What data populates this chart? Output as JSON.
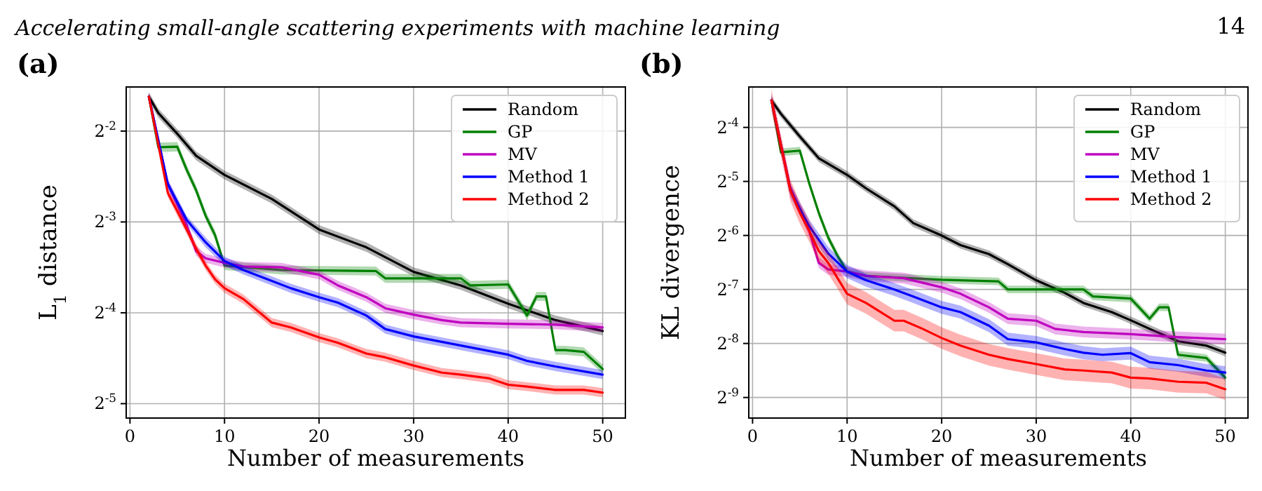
{
  "chart_data": [
    {
      "type": "line",
      "title": "(a)",
      "xlabel": "Number of measurements",
      "ylabel": "L$_{1}$ distance",
      "log": "y",
      "grid": true,
      "legend": "top right",
      "line_style": "solid",
      "marker": "none",
      "annotations": [
        "Accelerating small-angle scattering experiments with machine learning",
        "14"
      ],
      "xlim": [
        -0.4,
        52.4
      ],
      "xticks": [
        0,
        10,
        20,
        30,
        40,
        50
      ],
      "ylim": [
        0.028,
        0.35
      ],
      "yticks": [
        {
          "value": 0.25,
          "label": "2$^{-2}$"
        },
        {
          "value": 0.125,
          "label": "2$^{-3}$"
        },
        {
          "value": 0.0625,
          "label": "2$^{-4}$"
        },
        {
          "value": 0.03125,
          "label": "2$^{-5}$"
        }
      ],
      "series": [
        {
          "name": "Random",
          "color": "#000000",
          "x": [
            2,
            3,
            5,
            7,
            10,
            15,
            20,
            25,
            30,
            35,
            40,
            45,
            50
          ],
          "values": [
            0.325,
            0.287,
            0.245,
            0.207,
            0.179,
            0.149,
            0.118,
            0.103,
            0.0854,
            0.077,
            0.067,
            0.0591,
            0.0544
          ],
          "lower": [
            0.314,
            0.277,
            0.237,
            0.2,
            0.173,
            0.144,
            0.114,
            0.0995,
            0.0825,
            0.0744,
            0.0647,
            0.0571,
            0.0526
          ],
          "upper": [
            0.336,
            0.297,
            0.254,
            0.214,
            0.185,
            0.154,
            0.122,
            0.107,
            0.0884,
            0.0797,
            0.0693,
            0.0612,
            0.0563
          ]
        },
        {
          "name": "GP",
          "color": "#008000",
          "x": [
            2,
            3,
            5,
            6,
            7,
            8,
            9,
            10,
            16,
            26,
            27,
            35,
            36,
            40,
            42,
            43,
            44,
            45,
            46,
            48,
            50
          ],
          "values": [
            0.325,
            0.221,
            0.222,
            0.186,
            0.159,
            0.131,
            0.113,
            0.0896,
            0.0866,
            0.086,
            0.0813,
            0.0813,
            0.077,
            0.0776,
            0.0612,
            0.0708,
            0.0708,
            0.047,
            0.047,
            0.0464,
            0.0407
          ],
          "lower": [
            0.314,
            0.213,
            0.214,
            0.18,
            0.154,
            0.127,
            0.109,
            0.0866,
            0.0837,
            0.0831,
            0.0785,
            0.0785,
            0.0744,
            0.075,
            0.0591,
            0.0684,
            0.0684,
            0.0454,
            0.0454,
            0.0448,
            0.0393
          ],
          "upper": [
            0.336,
            0.229,
            0.23,
            0.193,
            0.165,
            0.136,
            0.117,
            0.0927,
            0.0896,
            0.089,
            0.0841,
            0.0841,
            0.0797,
            0.0803,
            0.0633,
            0.0733,
            0.0733,
            0.0486,
            0.0486,
            0.048,
            0.0421
          ]
        },
        {
          "name": "MV",
          "color": "#bf00bf",
          "x": [
            2,
            4,
            6,
            7,
            8,
            10,
            12,
            16,
            20,
            22,
            25,
            27,
            30,
            33,
            35,
            40,
            45,
            50
          ],
          "values": [
            0.325,
            0.167,
            0.122,
            0.1,
            0.0947,
            0.0915,
            0.089,
            0.0884,
            0.0836,
            0.077,
            0.0704,
            0.0647,
            0.0616,
            0.0591,
            0.058,
            0.0575,
            0.0571,
            0.0559
          ],
          "lower": [
            0.314,
            0.161,
            0.118,
            0.0966,
            0.0915,
            0.0884,
            0.086,
            0.0854,
            0.0808,
            0.0744,
            0.068,
            0.0625,
            0.0595,
            0.0571,
            0.056,
            0.0555,
            0.0552,
            0.054
          ],
          "upper": [
            0.336,
            0.173,
            0.126,
            0.104,
            0.098,
            0.0947,
            0.0921,
            0.0915,
            0.0865,
            0.0797,
            0.0729,
            0.067,
            0.0638,
            0.0612,
            0.06,
            0.0595,
            0.0591,
            0.0579
          ]
        },
        {
          "name": "Method 1",
          "color": "#0000ff",
          "x": [
            2,
            4,
            6,
            8,
            10,
            12,
            15,
            17,
            20,
            22,
            25,
            27,
            30,
            35,
            40,
            42,
            45,
            50
          ],
          "values": [
            0.325,
            0.167,
            0.127,
            0.107,
            0.0928,
            0.0866,
            0.0797,
            0.0754,
            0.0704,
            0.0675,
            0.0612,
            0.0552,
            0.0522,
            0.0487,
            0.0454,
            0.0433,
            0.0415,
            0.039
          ],
          "lower": [
            0.314,
            0.161,
            0.123,
            0.103,
            0.0896,
            0.0837,
            0.077,
            0.0728,
            0.068,
            0.0652,
            0.0591,
            0.0533,
            0.0504,
            0.047,
            0.0439,
            0.0418,
            0.0401,
            0.0377
          ],
          "upper": [
            0.336,
            0.173,
            0.131,
            0.111,
            0.096,
            0.0896,
            0.0825,
            0.078,
            0.0729,
            0.0699,
            0.0633,
            0.0571,
            0.054,
            0.0504,
            0.047,
            0.0448,
            0.043,
            0.0404
          ]
        },
        {
          "name": "Method 2",
          "color": "#ff0000",
          "x": [
            2,
            4,
            5,
            6,
            7,
            8,
            9,
            10,
            12,
            15,
            17,
            20,
            22,
            25,
            27,
            30,
            33,
            35,
            38,
            40,
            42,
            45,
            48,
            50
          ],
          "values": [
            0.325,
            0.156,
            0.136,
            0.118,
            0.102,
            0.0896,
            0.0807,
            0.0754,
            0.0694,
            0.058,
            0.0559,
            0.0518,
            0.0497,
            0.0458,
            0.0445,
            0.0418,
            0.0396,
            0.039,
            0.0379,
            0.0361,
            0.0356,
            0.0347,
            0.0347,
            0.034
          ],
          "lower": [
            0.314,
            0.151,
            0.131,
            0.114,
            0.0985,
            0.0866,
            0.078,
            0.0728,
            0.067,
            0.056,
            0.054,
            0.05,
            0.048,
            0.0442,
            0.043,
            0.0404,
            0.0383,
            0.0377,
            0.0366,
            0.0349,
            0.0344,
            0.0335,
            0.0335,
            0.0328
          ],
          "upper": [
            0.336,
            0.161,
            0.141,
            0.122,
            0.106,
            0.0927,
            0.0835,
            0.078,
            0.0718,
            0.06,
            0.0579,
            0.0536,
            0.0514,
            0.0474,
            0.0461,
            0.0433,
            0.041,
            0.0404,
            0.0392,
            0.0374,
            0.0368,
            0.0359,
            0.0359,
            0.0352
          ]
        }
      ]
    },
    {
      "type": "line",
      "title": "(b)",
      "xlabel": "Number of measurements",
      "ylabel": "KL divergence",
      "log": "y",
      "grid": true,
      "legend": "top right",
      "line_style": "solid",
      "marker": "none",
      "xlim": [
        -0.4,
        52.4
      ],
      "xticks": [
        0,
        10,
        20,
        30,
        40,
        50
      ],
      "ylim": [
        0.0015,
        0.105
      ],
      "yticks": [
        {
          "value": 0.0625,
          "label": "2$^{-4}$"
        },
        {
          "value": 0.03125,
          "label": "2$^{-5}$"
        },
        {
          "value": 0.015625,
          "label": "2$^{-6}$"
        },
        {
          "value": 0.0078125,
          "label": "2$^{-7}$"
        },
        {
          "value": 0.00390625,
          "label": "2$^{-8}$"
        },
        {
          "value": 0.001953125,
          "label": "2$^{-9}$"
        }
      ],
      "series": [
        {
          "name": "Random",
          "color": "#000000",
          "x": [
            2,
            3,
            5,
            7,
            10,
            12,
            15,
            17,
            20,
            22,
            25,
            27,
            30,
            33,
            35,
            38,
            40,
            42,
            45,
            48,
            50
          ],
          "values": [
            0.0884,
            0.0744,
            0.0556,
            0.0421,
            0.034,
            0.0286,
            0.0227,
            0.0183,
            0.0156,
            0.0138,
            0.0123,
            0.0108,
            0.00879,
            0.00749,
            0.00657,
            0.00584,
            0.00526,
            0.00471,
            0.00402,
            0.0038,
            0.00347
          ],
          "lower": [
            0.0842,
            0.0709,
            0.053,
            0.0401,
            0.0324,
            0.0273,
            0.0216,
            0.0174,
            0.0149,
            0.0132,
            0.0117,
            0.0103,
            0.00838,
            0.00714,
            0.00626,
            0.00557,
            0.00501,
            0.00449,
            0.00383,
            0.00362,
            0.00331
          ],
          "upper": [
            0.0928,
            0.0781,
            0.0584,
            0.0442,
            0.0357,
            0.03,
            0.0238,
            0.0192,
            0.0164,
            0.0145,
            0.0129,
            0.0113,
            0.00923,
            0.00786,
            0.0069,
            0.00613,
            0.00552,
            0.00495,
            0.00422,
            0.00399,
            0.00364
          ]
        },
        {
          "name": "GP",
          "color": "#008000",
          "x": [
            2,
            3,
            5,
            6,
            7,
            8,
            9,
            10,
            12,
            20,
            26,
            27,
            35,
            36,
            40,
            42,
            43,
            44,
            45,
            48,
            50
          ],
          "values": [
            0.0884,
            0.0454,
            0.0464,
            0.0304,
            0.0209,
            0.0152,
            0.012,
            0.00983,
            0.0093,
            0.00884,
            0.00867,
            0.00781,
            0.00781,
            0.00714,
            0.00695,
            0.00537,
            0.00621,
            0.00621,
            0.00338,
            0.00324,
            0.00252
          ],
          "lower": [
            0.0842,
            0.0433,
            0.0442,
            0.029,
            0.0199,
            0.0145,
            0.0114,
            0.00937,
            0.00886,
            0.00842,
            0.00826,
            0.00744,
            0.00744,
            0.0068,
            0.00662,
            0.00512,
            0.00592,
            0.00592,
            0.00322,
            0.00309,
            0.0024
          ],
          "upper": [
            0.0928,
            0.0477,
            0.0487,
            0.0319,
            0.0219,
            0.016,
            0.0126,
            0.0103,
            0.00977,
            0.00928,
            0.0091,
            0.0082,
            0.0082,
            0.0075,
            0.0073,
            0.00564,
            0.00652,
            0.00652,
            0.00355,
            0.0034,
            0.00265
          ]
        },
        {
          "name": "MV",
          "color": "#bf00bf",
          "x": [
            2,
            4,
            6,
            7,
            8,
            10,
            12,
            16,
            20,
            22,
            25,
            27,
            30,
            32,
            35,
            40,
            45,
            50
          ],
          "values": [
            0.0884,
            0.0286,
            0.0165,
            0.011,
            0.0101,
            0.00983,
            0.0093,
            0.00903,
            0.00803,
            0.00739,
            0.00621,
            0.00537,
            0.00523,
            0.00471,
            0.00452,
            0.0044,
            0.00424,
            0.00413
          ],
          "lower": [
            0.0825,
            0.0267,
            0.0154,
            0.0103,
            0.00942,
            0.00917,
            0.00868,
            0.00842,
            0.00749,
            0.00689,
            0.00579,
            0.00501,
            0.00488,
            0.00439,
            0.00422,
            0.00411,
            0.00396,
            0.00385
          ],
          "upper": [
            0.0948,
            0.0307,
            0.0177,
            0.0118,
            0.0108,
            0.0105,
            0.00997,
            0.00968,
            0.00861,
            0.00792,
            0.00666,
            0.00576,
            0.00561,
            0.00505,
            0.00485,
            0.00472,
            0.00455,
            0.00443
          ]
        },
        {
          "name": "Method 1",
          "color": "#0000ff",
          "x": [
            2,
            4,
            6,
            8,
            10,
            12,
            15,
            17,
            20,
            22,
            25,
            27,
            30,
            33,
            35,
            37,
            40,
            42,
            45,
            48,
            50
          ],
          "values": [
            0.0884,
            0.0278,
            0.0176,
            0.0124,
            0.00983,
            0.00879,
            0.00781,
            0.00714,
            0.00621,
            0.00584,
            0.00491,
            0.00413,
            0.00396,
            0.00364,
            0.00347,
            0.00338,
            0.00345,
            0.00307,
            0.00296,
            0.00276,
            0.00269
          ],
          "lower": [
            0.0813,
            0.0256,
            0.0162,
            0.0114,
            0.00904,
            0.00809,
            0.00719,
            0.00657,
            0.00571,
            0.00537,
            0.00452,
            0.0038,
            0.00364,
            0.00335,
            0.00319,
            0.00311,
            0.00317,
            0.00282,
            0.00272,
            0.00254,
            0.00247
          ],
          "upper": [
            0.0961,
            0.0302,
            0.0191,
            0.0135,
            0.0107,
            0.00955,
            0.00849,
            0.00776,
            0.00675,
            0.00635,
            0.00534,
            0.00449,
            0.0043,
            0.00396,
            0.00377,
            0.00367,
            0.00375,
            0.00334,
            0.00322,
            0.003,
            0.00292
          ]
        },
        {
          "name": "Method 2",
          "color": "#ff0000",
          "x": [
            2,
            4,
            5,
            6,
            7,
            8,
            10,
            12,
            15,
            16,
            18,
            20,
            22,
            25,
            27,
            30,
            33,
            35,
            38,
            40,
            42,
            45,
            48,
            50
          ],
          "values": [
            0.0884,
            0.0278,
            0.0209,
            0.0165,
            0.0128,
            0.011,
            0.00739,
            0.00657,
            0.00523,
            0.00523,
            0.00471,
            0.00419,
            0.0038,
            0.00338,
            0.0032,
            0.003,
            0.0028,
            0.00276,
            0.00269,
            0.00252,
            0.00249,
            0.00239,
            0.00236,
            0.00217
          ],
          "lower": [
            0.077,
            0.0242,
            0.0182,
            0.0144,
            0.0111,
            0.00958,
            0.00644,
            0.00572,
            0.00456,
            0.00456,
            0.0041,
            0.00365,
            0.00331,
            0.00294,
            0.00279,
            0.00261,
            0.00244,
            0.0024,
            0.00234,
            0.00219,
            0.00217,
            0.00208,
            0.00206,
            0.00189
          ],
          "upper": [
            0.102,
            0.0319,
            0.024,
            0.019,
            0.0147,
            0.0126,
            0.00849,
            0.00755,
            0.00601,
            0.00601,
            0.00541,
            0.00481,
            0.00437,
            0.00388,
            0.00368,
            0.00345,
            0.00322,
            0.00317,
            0.00309,
            0.0029,
            0.00286,
            0.00275,
            0.00271,
            0.00249
          ]
        }
      ]
    }
  ]
}
